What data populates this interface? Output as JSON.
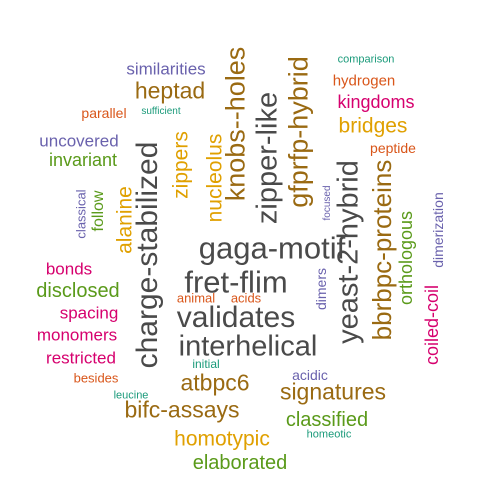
{
  "palette": {
    "dark_gray": "#4a4a4a",
    "gold": "#e0a000",
    "brown": "#9a6a12",
    "green": "#5a9a1a",
    "magenta": "#d6006e",
    "orange_red": "#d9561a",
    "slate_purple": "#6a62ad",
    "teal": "#1a9a7a"
  },
  "words": [
    {
      "text": "gaga-motif",
      "color": "dark_gray",
      "vertical": false
    },
    {
      "text": "fret-flim",
      "color": "dark_gray",
      "vertical": false
    },
    {
      "text": "validates",
      "color": "dark_gray",
      "vertical": false
    },
    {
      "text": "interhelical",
      "color": "dark_gray",
      "vertical": false
    },
    {
      "text": "charge-stabilized",
      "color": "dark_gray",
      "vertical": true
    },
    {
      "text": "zipper-like",
      "color": "dark_gray",
      "vertical": true
    },
    {
      "text": "yeast-2-hybrid",
      "color": "dark_gray",
      "vertical": true
    },
    {
      "text": "knobs--holes",
      "color": "brown",
      "vertical": true
    },
    {
      "text": "gfprfp-hybrid",
      "color": "brown",
      "vertical": true
    },
    {
      "text": "bbrbpc-proteins",
      "color": "brown",
      "vertical": true
    },
    {
      "text": "atbpc6",
      "color": "brown",
      "vertical": false
    },
    {
      "text": "signatures",
      "color": "brown",
      "vertical": false
    },
    {
      "text": "bifc-assays",
      "color": "brown",
      "vertical": false
    },
    {
      "text": "heptad",
      "color": "brown",
      "vertical": false
    },
    {
      "text": "bridges",
      "color": "gold",
      "vertical": false
    },
    {
      "text": "zippers",
      "color": "gold",
      "vertical": true
    },
    {
      "text": "nucleolus",
      "color": "gold",
      "vertical": true
    },
    {
      "text": "alanine",
      "color": "gold",
      "vertical": true
    },
    {
      "text": "homotypic",
      "color": "gold",
      "vertical": false
    },
    {
      "text": "hydrogen",
      "color": "orange_red",
      "vertical": false
    },
    {
      "text": "kingdoms",
      "color": "magenta",
      "vertical": false
    },
    {
      "text": "peptide",
      "color": "orange_red",
      "vertical": false
    },
    {
      "text": "orthologous",
      "color": "green",
      "vertical": true
    },
    {
      "text": "coiled-coil",
      "color": "magenta",
      "vertical": true
    },
    {
      "text": "dimerization",
      "color": "slate_purple",
      "vertical": true
    },
    {
      "text": "classified",
      "color": "green",
      "vertical": false
    },
    {
      "text": "elaborated",
      "color": "green",
      "vertical": false
    },
    {
      "text": "homeotic",
      "color": "teal",
      "vertical": false
    },
    {
      "text": "acidic",
      "color": "slate_purple",
      "vertical": false
    },
    {
      "text": "dimers",
      "color": "slate_purple",
      "vertical": true
    },
    {
      "text": "focused",
      "color": "slate_purple",
      "vertical": true
    },
    {
      "text": "comparison",
      "color": "teal",
      "vertical": false
    },
    {
      "text": "similarities",
      "color": "slate_purple",
      "vertical": false
    },
    {
      "text": "parallel",
      "color": "orange_red",
      "vertical": false
    },
    {
      "text": "sufficient",
      "color": "teal",
      "vertical": false
    },
    {
      "text": "uncovered",
      "color": "slate_purple",
      "vertical": false
    },
    {
      "text": "invariant",
      "color": "green",
      "vertical": false
    },
    {
      "text": "classical",
      "color": "slate_purple",
      "vertical": true
    },
    {
      "text": "follow",
      "color": "green",
      "vertical": true
    },
    {
      "text": "bonds",
      "color": "magenta",
      "vertical": false
    },
    {
      "text": "disclosed",
      "color": "green",
      "vertical": false
    },
    {
      "text": "spacing",
      "color": "magenta",
      "vertical": false
    },
    {
      "text": "monomers",
      "color": "magenta",
      "vertical": false
    },
    {
      "text": "restricted",
      "color": "magenta",
      "vertical": false
    },
    {
      "text": "besides",
      "color": "orange_red",
      "vertical": false
    },
    {
      "text": "leucine",
      "color": "teal",
      "vertical": false
    },
    {
      "text": "animal",
      "color": "orange_red",
      "vertical": false
    },
    {
      "text": "acids",
      "color": "orange_red",
      "vertical": false
    },
    {
      "text": "initial",
      "color": "teal",
      "vertical": false
    }
  ]
}
